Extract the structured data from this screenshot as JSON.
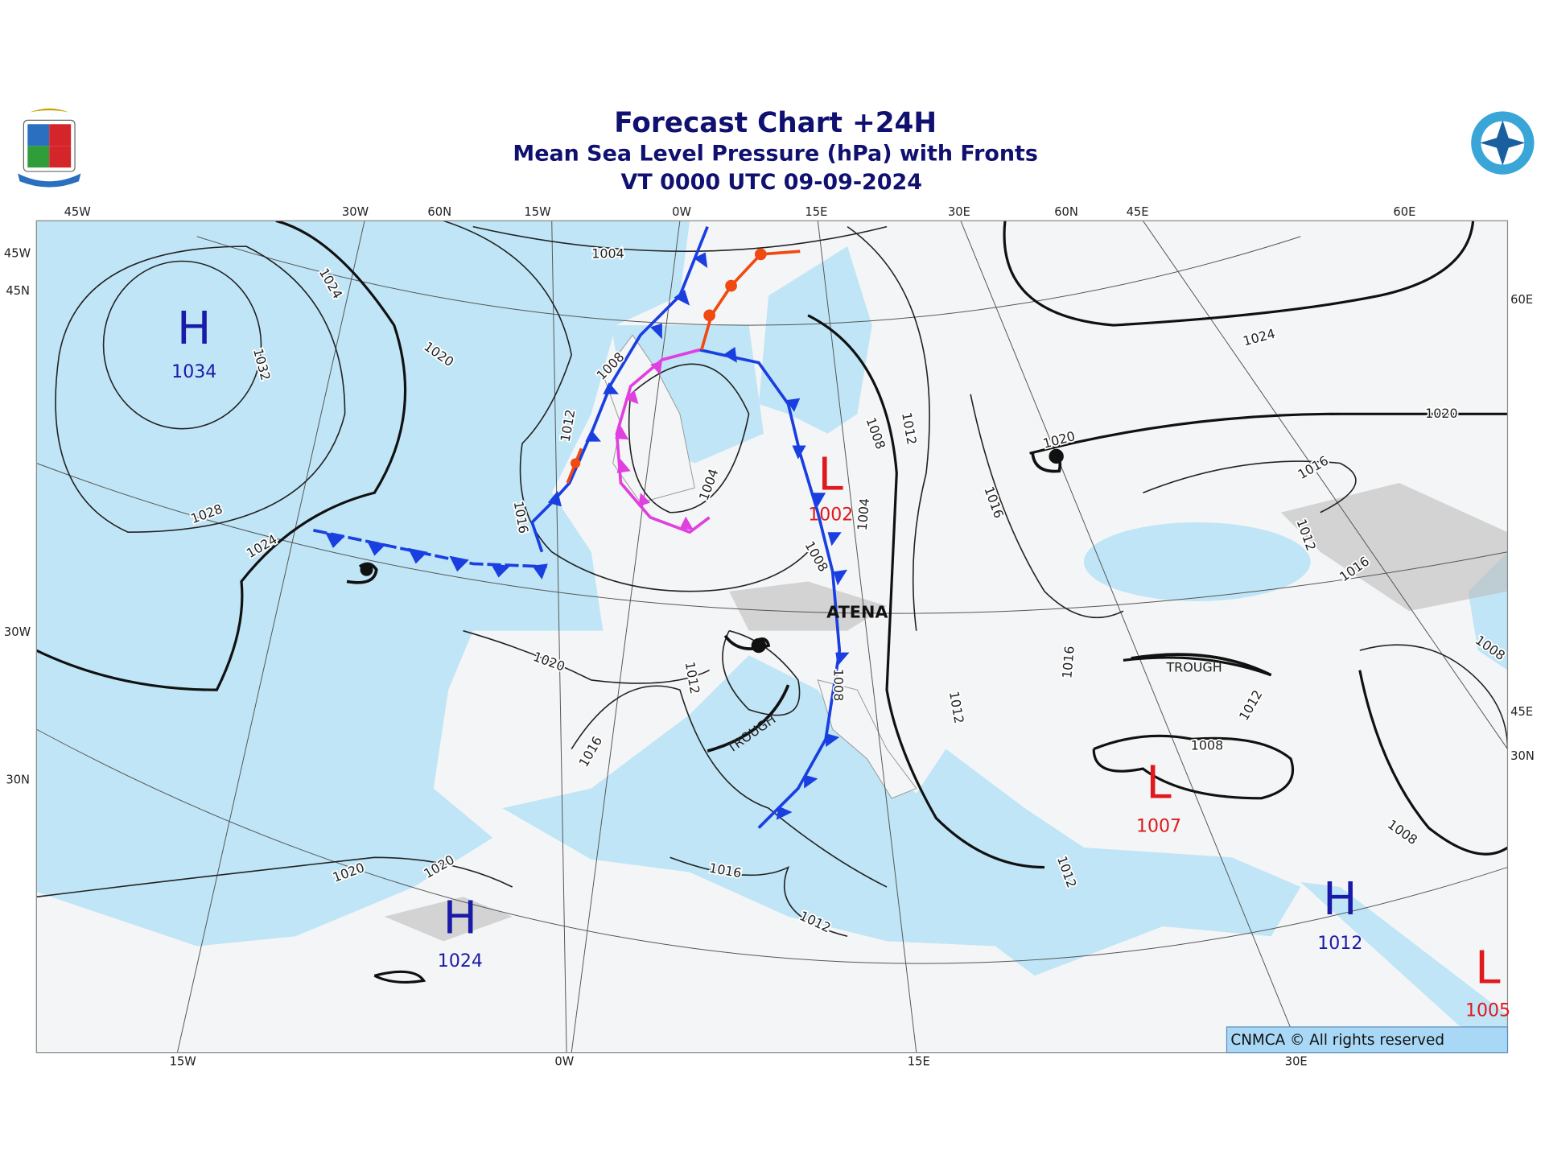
{
  "header": {
    "title": "Forecast Chart +24H",
    "subtitle": "Mean Sea Level Pressure (hPa) with Fronts",
    "valid_time": "VT 0000 UTC 09-09-2024"
  },
  "graticule": {
    "top": [
      "45W",
      "30W",
      "60N",
      "15W",
      "0W",
      "15E",
      "30E",
      "60N",
      "45E",
      "60E"
    ],
    "left": [
      "45W",
      "45N",
      "30W",
      "30N"
    ],
    "right": [
      "60E",
      "45E",
      "30N"
    ],
    "bottom": [
      "15W",
      "0W",
      "15E",
      "30E"
    ]
  },
  "pressure_centers": [
    {
      "symbol": "H",
      "value": "1034"
    },
    {
      "symbol": "L",
      "value": "1002"
    },
    {
      "symbol": "L",
      "value": "1007"
    },
    {
      "symbol": "H",
      "value": "1024"
    },
    {
      "symbol": "H",
      "value": "1012"
    },
    {
      "symbol": "L",
      "value": "1005"
    }
  ],
  "isobar_labels": [
    "1004",
    "1024",
    "1020",
    "1032",
    "1008",
    "1012",
    "1004",
    "1008",
    "1012",
    "1004",
    "1028",
    "1016",
    "1024",
    "1008",
    "1024",
    "1020",
    "1020",
    "1016",
    "1016",
    "1012",
    "1016",
    "1008",
    "1020",
    "1012",
    "1016",
    "1012",
    "1012",
    "1008",
    "1016",
    "1008",
    "1008",
    "1020",
    "1020",
    "1016",
    "1012",
    "1012"
  ],
  "annotations": {
    "station": "ATENA",
    "troughs": [
      "TROUGH",
      "TROUGH"
    ]
  },
  "copyright": "CNMCA © All rights reserved"
}
